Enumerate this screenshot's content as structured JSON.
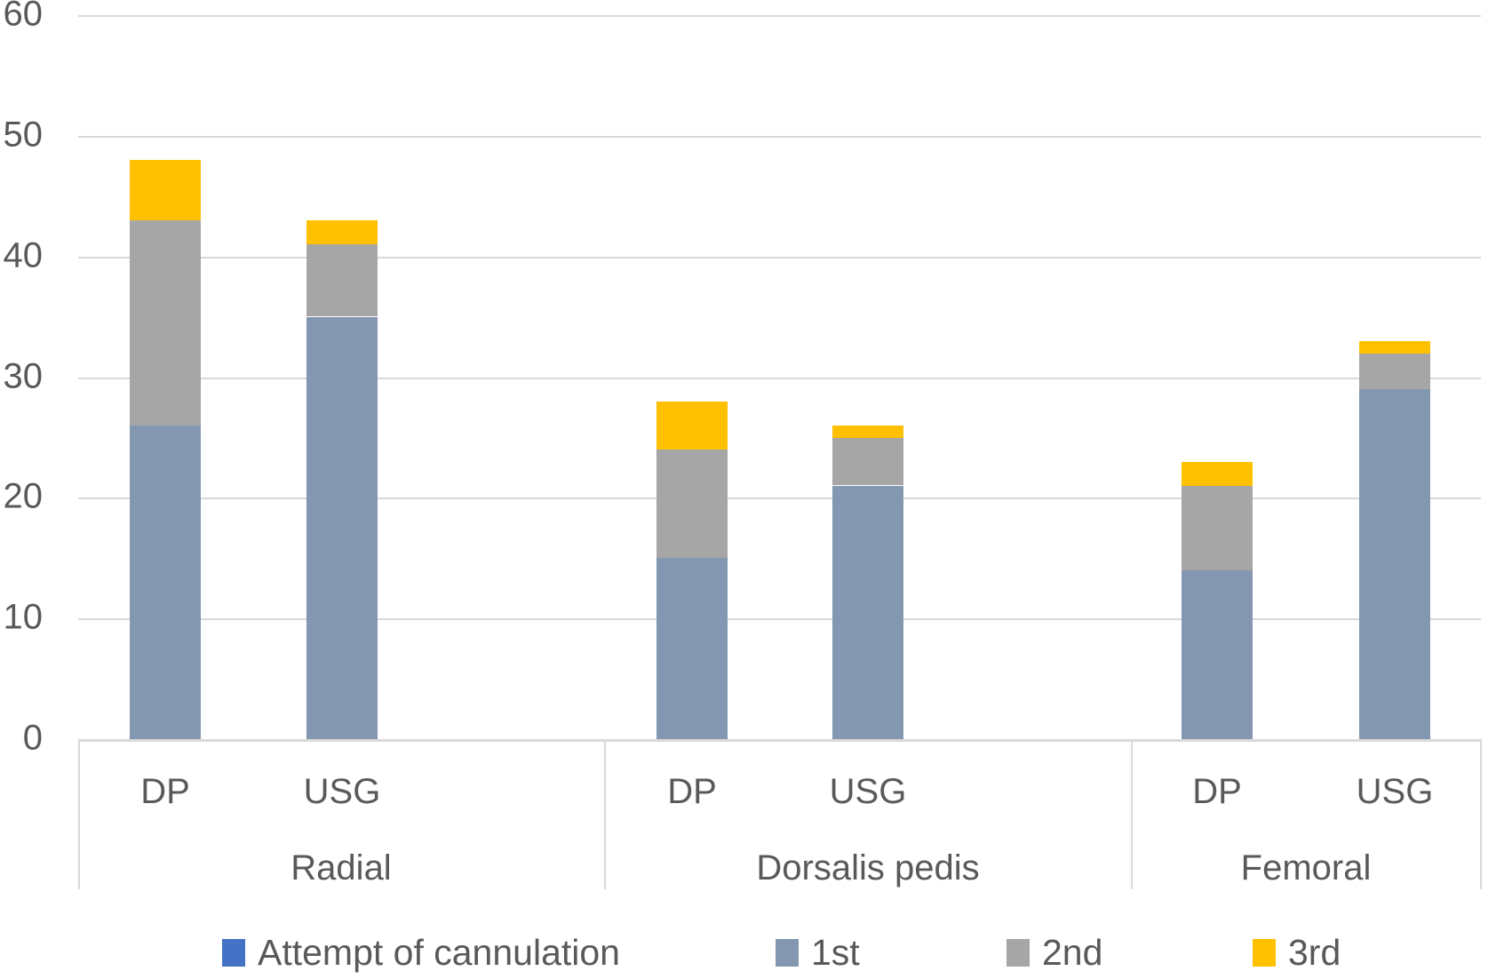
{
  "chart_data": {
    "type": "bar",
    "subtype": "stacked-vertical",
    "title": "",
    "xlabel": "",
    "ylabel": "",
    "y_axis": {
      "min": 0,
      "max": 60,
      "step": 10,
      "tick_labels": [
        "0",
        "10",
        "20",
        "30",
        "40",
        "50",
        "60"
      ],
      "grid": true
    },
    "categories": [
      "DP",
      "USG",
      "DP",
      "USG",
      "DP",
      "USG"
    ],
    "groups": [
      "Radial",
      "Dorsalis pedis",
      "Femoral"
    ],
    "group_of_category": [
      0,
      0,
      1,
      1,
      2,
      2
    ],
    "series": [
      {
        "name": "1st",
        "color": "#8497B0",
        "values": [
          26,
          35,
          15,
          21,
          14,
          29
        ]
      },
      {
        "name": "2nd",
        "color": "#A6A6A6",
        "values": [
          17,
          6,
          9,
          4,
          7,
          3
        ]
      },
      {
        "name": "3rd",
        "color": "#FFC000",
        "values": [
          5,
          2,
          4,
          1,
          2,
          1
        ]
      }
    ],
    "stack_totals": [
      48,
      43,
      28,
      26,
      23,
      33
    ],
    "legend_position": "bottom",
    "legend": [
      {
        "label": "Attempt of cannulation",
        "color": "#4472C4"
      },
      {
        "label": "1st",
        "color": "#8497B0"
      },
      {
        "label": "2nd",
        "color": "#A6A6A6"
      },
      {
        "label": "3rd",
        "color": "#FFC000"
      }
    ]
  },
  "colors": {
    "gridline": "#D9D9D9",
    "axis_text": "#595959",
    "background": "#FFFFFF"
  }
}
